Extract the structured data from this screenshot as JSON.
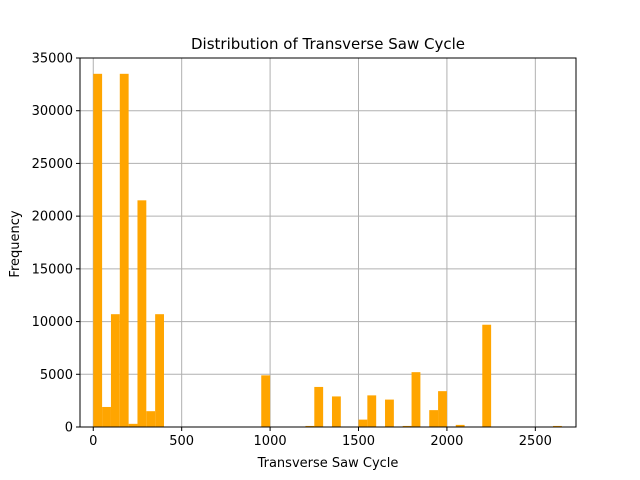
{
  "chart_data": {
    "type": "bar",
    "title": "Distribution of Transverse Saw Cycle",
    "xlabel": "Transverse Saw Cycle",
    "ylabel": "Frequency",
    "xlim": [
      -75,
      2730
    ],
    "ylim": [
      0,
      35000
    ],
    "xticks": [
      0,
      500,
      1000,
      1500,
      2000,
      2500
    ],
    "yticks": [
      0,
      5000,
      10000,
      15000,
      20000,
      25000,
      30000,
      35000
    ],
    "bin_width": 50,
    "bar_color": "#FFA500",
    "grid": true,
    "bins": [
      {
        "x": 0,
        "value": 33500
      },
      {
        "x": 50,
        "value": 1900
      },
      {
        "x": 100,
        "value": 10700
      },
      {
        "x": 150,
        "value": 33500
      },
      {
        "x": 200,
        "value": 300
      },
      {
        "x": 250,
        "value": 21500
      },
      {
        "x": 300,
        "value": 1500
      },
      {
        "x": 350,
        "value": 10700
      },
      {
        "x": 950,
        "value": 4900
      },
      {
        "x": 1200,
        "value": 100
      },
      {
        "x": 1250,
        "value": 3800
      },
      {
        "x": 1350,
        "value": 2900
      },
      {
        "x": 1500,
        "value": 700
      },
      {
        "x": 1550,
        "value": 3000
      },
      {
        "x": 1650,
        "value": 2600
      },
      {
        "x": 1750,
        "value": 100
      },
      {
        "x": 1800,
        "value": 5200
      },
      {
        "x": 1900,
        "value": 1600
      },
      {
        "x": 1950,
        "value": 3400
      },
      {
        "x": 2050,
        "value": 200
      },
      {
        "x": 2200,
        "value": 9700
      },
      {
        "x": 2600,
        "value": 100
      }
    ]
  }
}
